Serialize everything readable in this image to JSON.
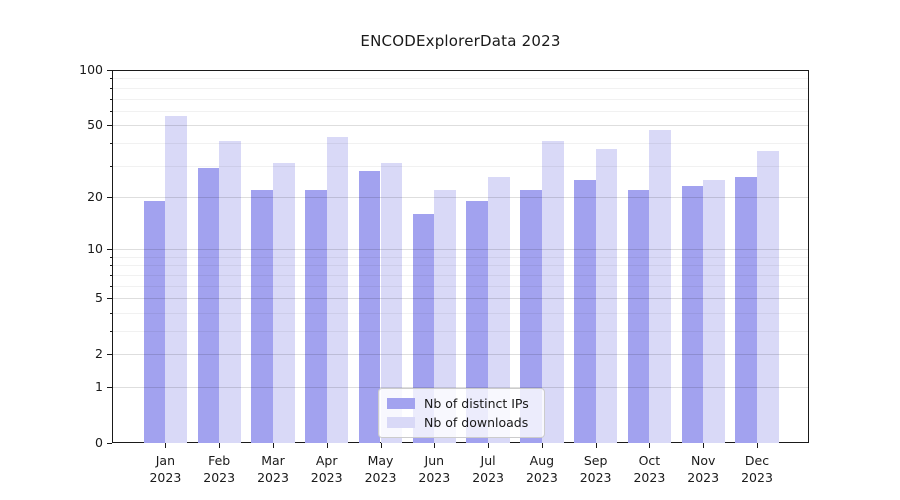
{
  "title": "ENCODExplorerData 2023",
  "chart_data": {
    "type": "bar",
    "title": "ENCODExplorerData 2023",
    "categories": [
      "Jan 2023",
      "Feb 2023",
      "Mar 2023",
      "Apr 2023",
      "May 2023",
      "Jun 2023",
      "Jul 2023",
      "Aug 2023",
      "Sep 2023",
      "Oct 2023",
      "Nov 2023",
      "Dec 2023"
    ],
    "month_labels": [
      "Jan",
      "Feb",
      "Mar",
      "Apr",
      "May",
      "Jun",
      "Jul",
      "Aug",
      "Sep",
      "Oct",
      "Nov",
      "Dec"
    ],
    "year_label": "2023",
    "series": [
      {
        "name": "Nb of distinct IPs",
        "color": "#a2a2ef",
        "values": [
          19,
          29,
          22,
          22,
          28,
          16,
          19,
          22,
          25,
          22,
          23,
          26
        ]
      },
      {
        "name": "Nb of downloads",
        "color": "#d9d9f7",
        "values": [
          56,
          41,
          31,
          43,
          31,
          22,
          26,
          41,
          37,
          47,
          25,
          36
        ]
      }
    ],
    "yscale": "log1p",
    "ylim": [
      0,
      100
    ],
    "y_major_ticks": [
      0,
      1,
      2,
      5,
      10,
      20,
      50,
      100
    ],
    "y_minor_ticks": [
      3,
      4,
      6,
      7,
      8,
      9,
      30,
      40,
      60,
      70,
      80,
      90
    ],
    "grid": true,
    "legend_position": "lower center"
  }
}
